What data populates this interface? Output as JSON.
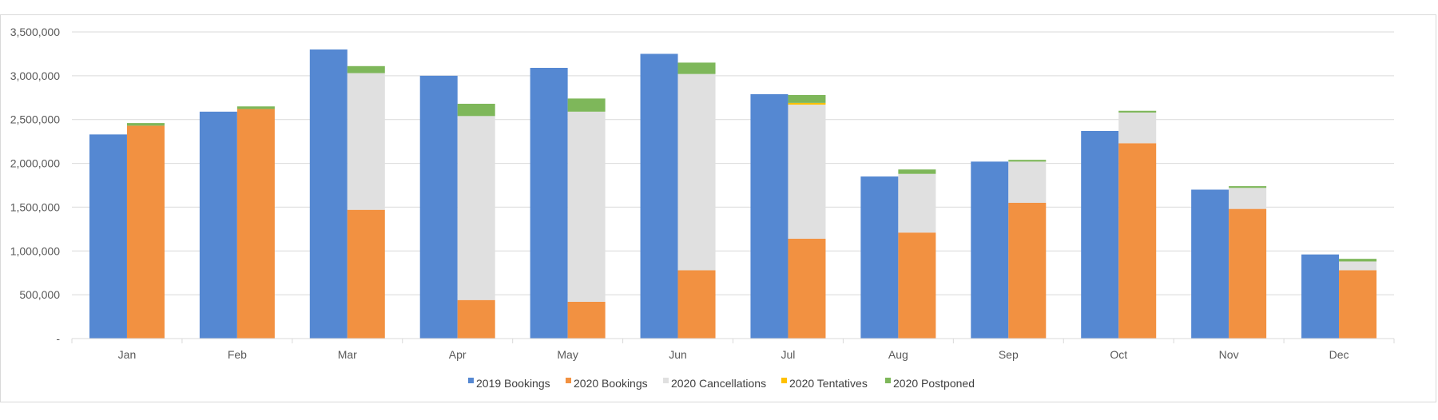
{
  "chart_data": {
    "type": "bar",
    "categories": [
      "Jan",
      "Feb",
      "Mar",
      "Apr",
      "May",
      "Jun",
      "Jul",
      "Aug",
      "Sep",
      "Oct",
      "Nov",
      "Dec"
    ],
    "series": [
      {
        "name": "2019 Bookings",
        "group": "2019",
        "color": "#5588d2",
        "values": [
          2330000,
          2590000,
          3300000,
          3000000,
          3090000,
          3250000,
          2790000,
          1850000,
          2020000,
          2370000,
          1700000,
          960000
        ]
      },
      {
        "name": "2020 Bookings",
        "group": "2020",
        "color": "#f29141",
        "values": [
          2430000,
          2620000,
          1470000,
          440000,
          420000,
          780000,
          1140000,
          1210000,
          1550000,
          2230000,
          1480000,
          780000
        ]
      },
      {
        "name": "2020 Cancellations",
        "group": "2020",
        "color": "#e0e0e0",
        "values": [
          0,
          0,
          1560000,
          2100000,
          2170000,
          2240000,
          1530000,
          670000,
          470000,
          350000,
          240000,
          100000
        ]
      },
      {
        "name": "2020 Tentatives",
        "group": "2020",
        "color": "#ffc000",
        "values": [
          0,
          0,
          0,
          0,
          0,
          0,
          20000,
          0,
          0,
          0,
          0,
          0
        ]
      },
      {
        "name": "2020 Postponed",
        "group": "2020",
        "color": "#7eb75a",
        "values": [
          30000,
          30000,
          80000,
          140000,
          150000,
          130000,
          90000,
          50000,
          20000,
          20000,
          20000,
          30000
        ]
      }
    ],
    "ylim": [
      0,
      3500000
    ],
    "yticks": [
      0,
      500000,
      1000000,
      1500000,
      2000000,
      2500000,
      3000000,
      3500000
    ],
    "ytick_labels": [
      "-",
      "500,000",
      "1,000,000",
      "1,500,000",
      "2,000,000",
      "2,500,000",
      "3,000,000",
      "3,500,000"
    ],
    "grid": true,
    "legend_position": "bottom"
  }
}
